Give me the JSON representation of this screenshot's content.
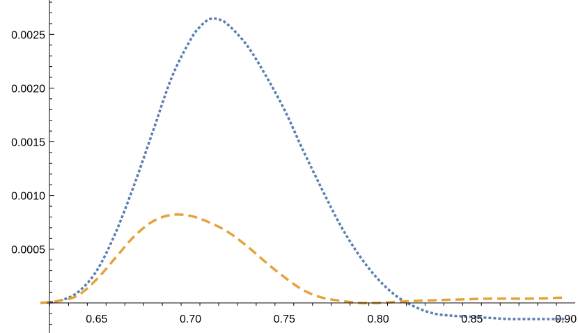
{
  "chart_data": {
    "type": "line",
    "title": "",
    "xlabel": "",
    "ylabel": "",
    "xlim": [
      0.62,
      0.905
    ],
    "ylim": [
      -0.00028,
      0.00282
    ],
    "grid": false,
    "legend": "none",
    "x_ticks": [
      0.65,
      0.7,
      0.75,
      0.8,
      0.85,
      0.9
    ],
    "x_tick_labels": [
      "0.65",
      "0.70",
      "0.75",
      "0.80",
      "0.85",
      "0.90"
    ],
    "y_ticks": [
      0.0005,
      0.001,
      0.0015,
      0.002,
      0.0025
    ],
    "y_tick_labels": [
      "0.0005",
      "0.0010",
      "0.0015",
      "0.0020",
      "0.0025"
    ],
    "series": [
      {
        "color": "#5B7FB3",
        "style": "dotted",
        "x": [
          0.62,
          0.63,
          0.64,
          0.65,
          0.66,
          0.67,
          0.68,
          0.69,
          0.7,
          0.705,
          0.71,
          0.715,
          0.72,
          0.73,
          0.74,
          0.75,
          0.76,
          0.77,
          0.78,
          0.79,
          0.8,
          0.81,
          0.82,
          0.83,
          0.84,
          0.85,
          0.86,
          0.87,
          0.88,
          0.89,
          0.9
        ],
        "y": [
          0.0,
          2e-05,
          0.0001,
          0.0003,
          0.00065,
          0.0011,
          0.0016,
          0.0021,
          0.00245,
          0.00257,
          0.00264,
          0.00264,
          0.00259,
          0.0024,
          0.00212,
          0.0018,
          0.00142,
          0.00106,
          0.00072,
          0.00044,
          0.00022,
          6e-05,
          -4e-05,
          -0.0001,
          -0.00012,
          -0.00013,
          -0.00014,
          -0.00015,
          -0.00015,
          -0.00015,
          -0.00015
        ]
      },
      {
        "color": "#E5A23A",
        "style": "dashed",
        "x": [
          0.62,
          0.63,
          0.64,
          0.65,
          0.66,
          0.67,
          0.68,
          0.69,
          0.7,
          0.71,
          0.72,
          0.73,
          0.74,
          0.75,
          0.76,
          0.77,
          0.78,
          0.79,
          0.8,
          0.81,
          0.82,
          0.84,
          0.86,
          0.88,
          0.9
        ],
        "y": [
          0.0,
          2e-05,
          7e-05,
          0.00022,
          0.00042,
          0.00062,
          0.00076,
          0.00082,
          0.00081,
          0.00075,
          0.00066,
          0.00053,
          0.00038,
          0.00024,
          0.00012,
          5e-05,
          2e-05,
          0.0,
          0.0,
          1e-05,
          2e-05,
          3e-05,
          4e-05,
          4e-05,
          5e-05
        ]
      }
    ]
  }
}
